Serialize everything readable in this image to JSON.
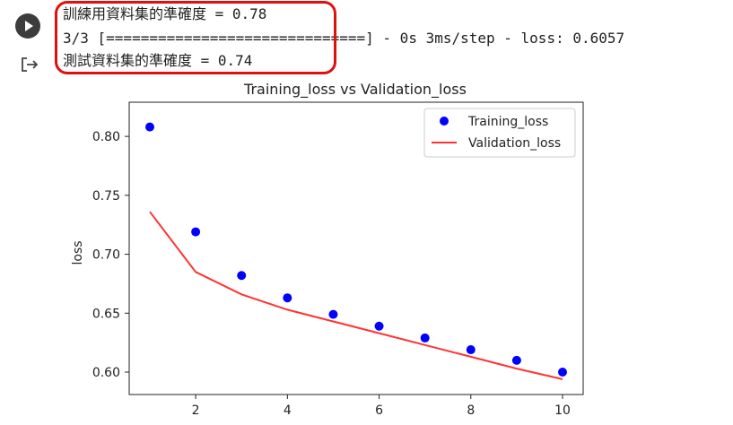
{
  "cell": {
    "run_button": "play-icon",
    "output_icon": "output-arrow-icon"
  },
  "output": {
    "line1": "訓練用資料集的準確度 = 0.78",
    "line2": "3/3 [==============================] - 0s 3ms/step - loss: 0.6057",
    "line3": "測試資料集的準確度 = 0.74"
  },
  "colors": {
    "highlight": "#e01010",
    "training": "#0000ff",
    "validation": "#ff3333"
  },
  "chart_data": {
    "type": "line",
    "title": "Training_loss vs Validation_loss",
    "xlabel": "",
    "ylabel": "loss",
    "xlim": [
      0.55,
      10.45
    ],
    "ylim": [
      0.581,
      0.829
    ],
    "xticks": [
      2,
      4,
      6,
      8,
      10
    ],
    "yticks": [
      0.6,
      0.65,
      0.7,
      0.75,
      0.8
    ],
    "ytick_labels": [
      "0.60",
      "0.65",
      "0.70",
      "0.75",
      "0.80"
    ],
    "legend_position": "top-right",
    "grid": false,
    "x": [
      1,
      2,
      3,
      4,
      5,
      6,
      7,
      8,
      9,
      10
    ],
    "series": [
      {
        "name": "Training_loss",
        "style": "points",
        "values": [
          0.808,
          0.719,
          0.682,
          0.663,
          0.649,
          0.639,
          0.629,
          0.619,
          0.61,
          0.6
        ]
      },
      {
        "name": "Validation_loss",
        "style": "line",
        "values": [
          0.736,
          0.685,
          0.666,
          0.653,
          0.643,
          0.633,
          0.623,
          0.613,
          0.603,
          0.594
        ]
      }
    ]
  }
}
